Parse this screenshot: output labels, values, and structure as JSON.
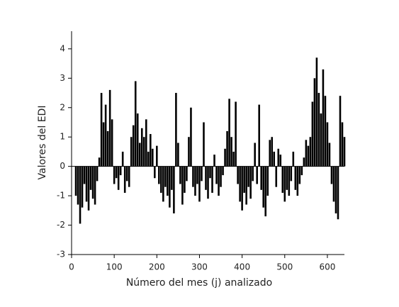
{
  "chart_data": {
    "type": "bar",
    "x_label": "Número del mes (j) analizado",
    "y_label": "Valores del EDI",
    "color": "#000000",
    "xlim": [
      0,
      640
    ],
    "ylim": [
      -3,
      4.6
    ],
    "xticks": [
      0,
      100,
      200,
      300,
      400,
      500,
      600
    ],
    "yticks": [
      -3,
      -2,
      -1,
      0,
      1,
      2,
      3,
      4
    ],
    "x": [
      10,
      15,
      20,
      25,
      30,
      35,
      40,
      45,
      50,
      55,
      60,
      65,
      70,
      75,
      80,
      85,
      90,
      95,
      100,
      105,
      110,
      115,
      120,
      125,
      130,
      135,
      140,
      145,
      150,
      155,
      160,
      165,
      170,
      175,
      180,
      185,
      190,
      195,
      200,
      205,
      210,
      215,
      220,
      225,
      230,
      235,
      240,
      245,
      250,
      255,
      260,
      265,
      270,
      275,
      280,
      285,
      290,
      295,
      300,
      305,
      310,
      315,
      320,
      325,
      330,
      335,
      340,
      345,
      350,
      355,
      360,
      365,
      370,
      375,
      380,
      385,
      390,
      395,
      400,
      405,
      410,
      415,
      420,
      425,
      430,
      435,
      440,
      445,
      450,
      455,
      460,
      465,
      470,
      475,
      480,
      485,
      490,
      495,
      500,
      505,
      510,
      515,
      520,
      525,
      530,
      535,
      540,
      545,
      550,
      555,
      560,
      565,
      570,
      575,
      580,
      585,
      590,
      595,
      600,
      605,
      610,
      615,
      620,
      625,
      630,
      635,
      640
    ],
    "values": [
      -1.0,
      -1.3,
      -1.95,
      -1.4,
      -0.6,
      -1.2,
      -1.5,
      -0.8,
      -1.1,
      -1.3,
      -0.5,
      0.3,
      2.5,
      1.5,
      2.1,
      1.2,
      2.6,
      1.6,
      -0.6,
      -0.4,
      -0.8,
      -0.3,
      0.5,
      -0.9,
      -0.5,
      -0.7,
      1.0,
      1.4,
      2.9,
      1.8,
      0.8,
      1.3,
      1.0,
      1.6,
      0.5,
      1.1,
      0.6,
      -0.4,
      0.7,
      -0.6,
      -0.9,
      -1.2,
      -0.7,
      -1.0,
      -1.4,
      -0.8,
      -1.6,
      2.5,
      0.8,
      -0.6,
      -1.3,
      -0.9,
      -0.5,
      1.0,
      2.0,
      -0.7,
      -1.0,
      -0.6,
      -1.2,
      -0.5,
      1.5,
      -0.8,
      -1.1,
      -0.4,
      -0.9,
      0.4,
      -0.6,
      -1.0,
      -0.7,
      -0.3,
      0.6,
      1.2,
      2.3,
      1.0,
      0.5,
      2.2,
      -0.6,
      -1.2,
      -1.5,
      -0.9,
      -1.3,
      -0.7,
      -1.1,
      -0.5,
      0.8,
      -0.6,
      2.1,
      -0.8,
      -1.4,
      -1.7,
      -1.0,
      0.9,
      1.0,
      0.5,
      -0.7,
      0.6,
      0.4,
      -0.9,
      -1.2,
      -0.8,
      -1.0,
      -0.5,
      0.5,
      -0.8,
      -1.0,
      -0.6,
      -0.3,
      0.3,
      0.9,
      0.7,
      1.0,
      2.2,
      3.0,
      3.7,
      2.5,
      1.8,
      3.3,
      2.4,
      1.5,
      0.8,
      -0.6,
      -1.2,
      -1.6,
      -1.8,
      2.4,
      1.5,
      1.0
    ]
  }
}
